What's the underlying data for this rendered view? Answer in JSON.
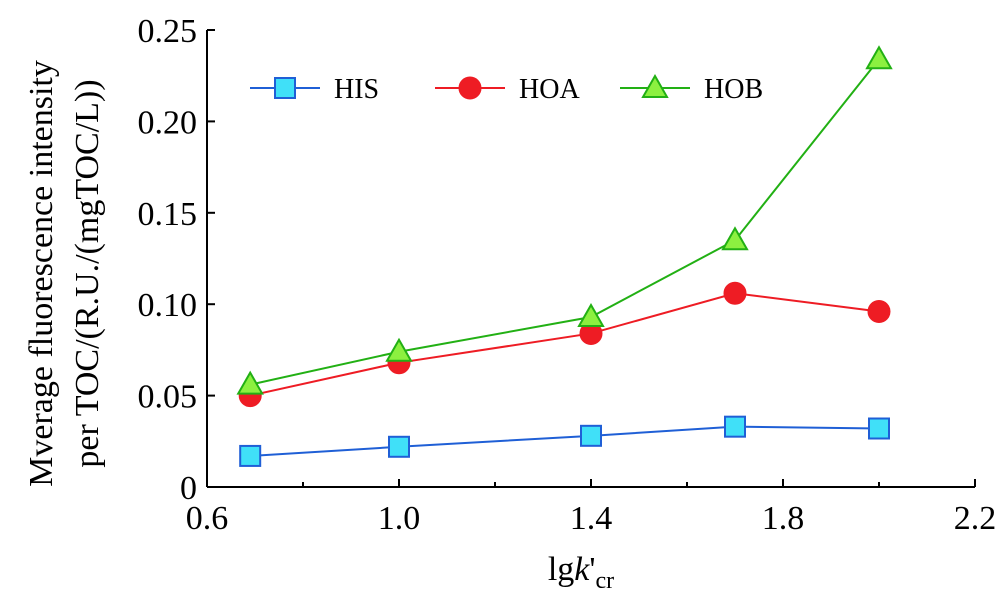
{
  "chart_data": {
    "type": "line",
    "xlabel": {
      "main": "lg",
      "italic": "k",
      "prime": "'",
      "subscript": "cr"
    },
    "ylabel": {
      "line1": "Mverage fluorescence intensity",
      "line2": "per TOC/(R.U./(mgTOC/L))"
    },
    "xlim": [
      0.6,
      2.2
    ],
    "ylim": [
      0,
      0.25
    ],
    "xticks": [
      "0.6",
      "1.0",
      "1.4",
      "1.8",
      "2.2"
    ],
    "yticks": [
      "0",
      "0.05",
      "0.10",
      "0.15",
      "0.20",
      "0.25"
    ],
    "x": [
      0.69,
      1.0,
      1.4,
      1.7,
      2.0
    ],
    "series": [
      {
        "name": "HIS",
        "color": "#1f5fd6",
        "fill": "#40e0f8",
        "marker": "square",
        "values": [
          0.017,
          0.022,
          0.028,
          0.033,
          0.032
        ]
      },
      {
        "name": "HOA",
        "color": "#ee1c24",
        "fill": "#ee1c24",
        "marker": "circle",
        "values": [
          0.05,
          0.068,
          0.084,
          0.106,
          0.096
        ]
      },
      {
        "name": "HOB",
        "color": "#22b014",
        "fill": "#8cf040",
        "marker": "triangle",
        "values": [
          0.056,
          0.074,
          0.093,
          0.135,
          0.234
        ]
      }
    ],
    "legend_position": "top-left",
    "grid": false
  }
}
